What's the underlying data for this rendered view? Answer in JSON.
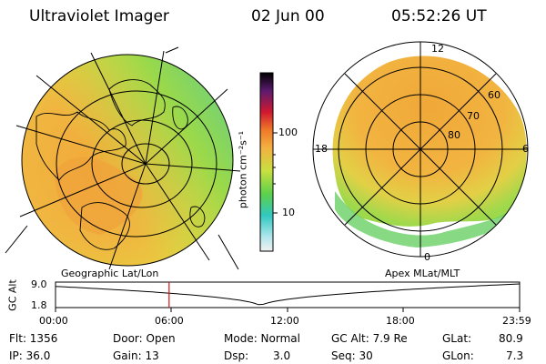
{
  "header": {
    "instrument": "Ultraviolet Imager",
    "date": "02 Jun 00",
    "time": "05:52:26 UT"
  },
  "colorbar": {
    "unit_label": "photon cm⁻²s⁻¹",
    "ticks": [
      "100",
      "10"
    ]
  },
  "left_panel": {
    "projection_label": "Geographic Lat/Lon"
  },
  "right_panel": {
    "projection_label": "Apex MLat/MLT",
    "mlt_labels": {
      "top": "12",
      "left": "18",
      "right": "6",
      "bottom": "0"
    },
    "lat_labels": [
      "60",
      "70",
      "80"
    ]
  },
  "altitude_plot": {
    "ylabel": "GC Alt",
    "y_ticks": [
      "9.0",
      "1.8"
    ],
    "x_ticks": [
      "00:00",
      "06:00",
      "12:00",
      "18:00",
      "23:59"
    ],
    "marker_time_hours": 5.874,
    "min_time_hours": 10.6
  },
  "status": {
    "flt": "Flt: 1356",
    "ip": "IP: 36.0",
    "door": "Door: Open",
    "gain": "Gain: 13",
    "mode": "Mode: Normal",
    "dsp_label": "Dsp:",
    "dsp_value": "3.0",
    "gc_alt": "GC Alt: 7.9 Re",
    "seq": "Seq: 30",
    "glat_label": "GLat:",
    "glat_value": "80.9",
    "glon_label": "GLon:",
    "glon_value": "7.3"
  }
}
